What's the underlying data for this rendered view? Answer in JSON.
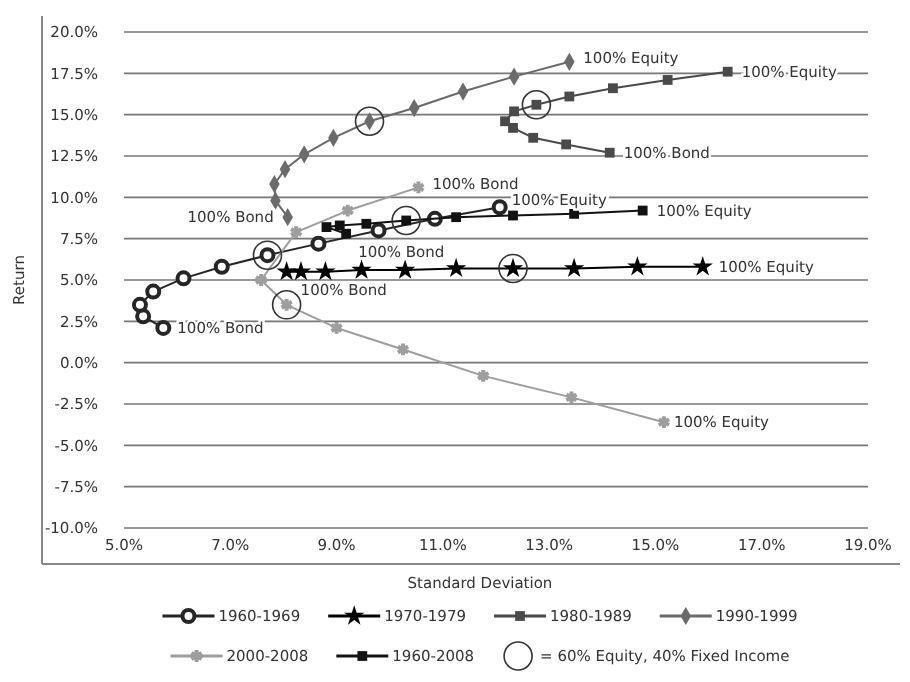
{
  "chart_data": {
    "type": "line",
    "xlabel": "Standard Deviation",
    "ylabel": "Return",
    "xlim": [
      5,
      19
    ],
    "xticks": [
      {
        "value": 5,
        "label": "5.0%"
      },
      {
        "value": 7,
        "label": "7.0%"
      },
      {
        "value": 9,
        "label": "9.0%"
      },
      {
        "value": 11,
        "label": "11.0%"
      },
      {
        "value": 13,
        "label": "13.0%"
      },
      {
        "value": 15,
        "label": "15.0%"
      },
      {
        "value": 17,
        "label": "17.0%"
      },
      {
        "value": 19,
        "label": "19.0%"
      }
    ],
    "ylim": [
      -10,
      20
    ],
    "yticks": [
      {
        "value": -10,
        "label": "-10.0%"
      },
      {
        "value": -7.5,
        "label": "-7.5%"
      },
      {
        "value": -5,
        "label": "-5.0%"
      },
      {
        "value": -2.5,
        "label": "-2.5%"
      },
      {
        "value": 0,
        "label": "0.0%"
      },
      {
        "value": 2.5,
        "label": "2.5%"
      },
      {
        "value": 5,
        "label": "5.0%"
      },
      {
        "value": 7.5,
        "label": "7.5%"
      },
      {
        "value": 10,
        "label": "10.0%"
      },
      {
        "value": 12.5,
        "label": "12.5%"
      },
      {
        "value": 15,
        "label": "15.0%"
      },
      {
        "value": 17.5,
        "label": "17.5%"
      },
      {
        "value": 20,
        "label": "20.0%"
      }
    ],
    "grid": "y",
    "legend": "bottom",
    "series": [
      {
        "name": "1960-1969",
        "color": "#262626",
        "marker": "circle",
        "x": [
          5.74,
          5.36,
          5.3,
          5.55,
          6.12,
          6.84,
          7.7,
          8.66,
          9.79,
          10.85,
          12.07
        ],
        "values": [
          2.1,
          2.8,
          3.5,
          4.3,
          5.1,
          5.8,
          6.5,
          7.2,
          8.0,
          8.7,
          9.4
        ]
      },
      {
        "name": "1970-1979",
        "color": "#000000",
        "marker": "star",
        "x": [
          8.06,
          8.33,
          8.79,
          9.47,
          10.29,
          11.25,
          12.32,
          13.47,
          14.66,
          15.89
        ],
        "values": [
          5.5,
          5.5,
          5.5,
          5.6,
          5.6,
          5.7,
          5.7,
          5.7,
          5.8,
          5.8
        ]
      },
      {
        "name": "1980-1989",
        "color": "#4a4a4a",
        "marker": "square",
        "x": [
          14.14,
          13.32,
          12.7,
          12.32,
          12.17,
          12.34,
          12.76,
          13.38,
          14.2,
          15.23,
          16.36
        ],
        "values": [
          12.7,
          13.2,
          13.6,
          14.2,
          14.6,
          15.2,
          15.6,
          16.1,
          16.6,
          17.1,
          17.6
        ]
      },
      {
        "name": "1990-1999",
        "color": "#6b6b6b",
        "marker": "diamond",
        "x": [
          8.08,
          7.85,
          7.83,
          8.03,
          8.39,
          8.94,
          9.62,
          10.46,
          11.38,
          12.34,
          13.38
        ],
        "values": [
          8.8,
          9.8,
          10.8,
          11.7,
          12.6,
          13.6,
          14.6,
          15.4,
          16.4,
          17.3,
          18.2
        ]
      },
      {
        "name": "2000-2008",
        "color": "#9e9e9e",
        "marker": "cross",
        "x": [
          10.54,
          9.21,
          8.24,
          7.58,
          8.06,
          9.0,
          10.25,
          11.76,
          13.42,
          15.16
        ],
        "values": [
          10.6,
          9.2,
          7.9,
          5.0,
          3.5,
          2.1,
          0.8,
          -0.8,
          -2.1,
          -3.6
        ]
      },
      {
        "name": "1960-2008",
        "color": "#121212",
        "marker": "square",
        "x": [
          9.18,
          8.81,
          9.06,
          9.56,
          10.31,
          11.25,
          12.32,
          13.47,
          14.76
        ],
        "values": [
          7.8,
          8.2,
          8.3,
          8.4,
          8.6,
          8.8,
          8.9,
          9.0,
          9.2
        ]
      },
      {
        "name": "= 60% Equity, 40% Fixed Income",
        "type": "scatter",
        "color": "#333333",
        "marker": "circle",
        "x": [
          7.7,
          8.06,
          9.62,
          12.76,
          10.31,
          12.32
        ],
        "values": [
          6.5,
          3.5,
          14.6,
          15.6,
          8.6,
          5.7
        ]
      }
    ],
    "annotations": [
      {
        "text": "100% Bond",
        "x": 5.74,
        "y": 2.1
      },
      {
        "text": "100% Bond",
        "x": 8.06,
        "y": 5.5
      },
      {
        "text": "100% Bond",
        "x": 8.08,
        "y": 8.8
      },
      {
        "text": "100% Bond",
        "x": 9.18,
        "y": 7.8
      },
      {
        "text": "100% Bond",
        "x": 10.54,
        "y": 10.6
      },
      {
        "text": "100% Equity",
        "x": 12.07,
        "y": 9.4
      },
      {
        "text": "100% Equity",
        "x": 14.76,
        "y": 9.2
      },
      {
        "text": "100% Equity",
        "x": 15.89,
        "y": 5.8
      },
      {
        "text": "100% Bond",
        "x": 14.14,
        "y": 12.7
      },
      {
        "text": "100% Equity",
        "x": 16.36,
        "y": 17.6
      },
      {
        "text": "100% Equity",
        "x": 13.38,
        "y": 18.2
      },
      {
        "text": "100% Equity",
        "x": 15.16,
        "y": -3.6
      }
    ]
  }
}
